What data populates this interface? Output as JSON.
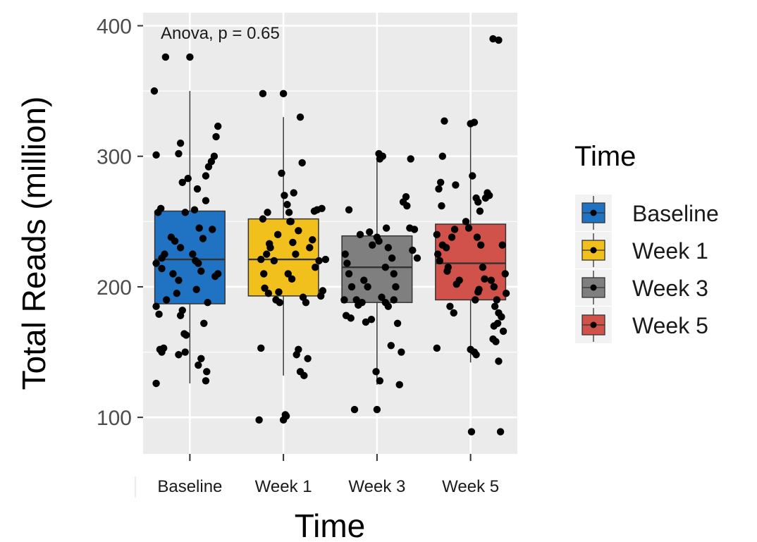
{
  "chart_data": {
    "type": "box",
    "title": "",
    "xlabel": "Time",
    "ylabel": "Total Reads (million)",
    "ylim": [
      72,
      410
    ],
    "yticks": [
      100,
      200,
      300,
      400
    ],
    "categories": [
      "Baseline",
      "Week 1",
      "Week 3",
      "Week 5"
    ],
    "annotation": "Anova, p = 0.65",
    "legend": {
      "title": "Time",
      "position": "right"
    },
    "grid": true,
    "colors": {
      "Baseline": "#1f73c2",
      "Week 1": "#f2c01c",
      "Week 3": "#7f7f7f",
      "Week 5": "#d0524a",
      "panel": "#ebebeb",
      "grid": "#ffffff",
      "point": "#000000"
    },
    "series": [
      {
        "name": "Baseline",
        "box": {
          "whisker_low": 126,
          "q1": 187,
          "median": 221,
          "q3": 258,
          "whisker_high": 350
        },
        "points": [
          [
            -0.36,
            126
          ],
          [
            -0.32,
            152
          ],
          [
            -0.3,
            150
          ],
          [
            -0.28,
            153
          ],
          [
            -0.25,
            190
          ],
          [
            -0.33,
            179
          ],
          [
            -0.36,
            185
          ],
          [
            -0.3,
            214
          ],
          [
            -0.36,
            218
          ],
          [
            -0.3,
            222
          ],
          [
            -0.27,
            225
          ],
          [
            -0.34,
            257
          ],
          [
            -0.31,
            260
          ],
          [
            -0.36,
            301
          ],
          [
            -0.38,
            350
          ],
          [
            -0.26,
            376
          ],
          [
            -0.2,
            238
          ],
          [
            -0.18,
            210
          ],
          [
            -0.12,
            205
          ],
          [
            -0.16,
            235
          ],
          [
            -0.1,
            230
          ],
          [
            -0.05,
            257
          ],
          [
            -0.08,
            280
          ],
          [
            -0.02,
            283
          ],
          [
            0.0,
            376
          ],
          [
            -0.1,
            310
          ],
          [
            -0.12,
            302
          ],
          [
            -0.14,
            195
          ],
          [
            -0.08,
            182
          ],
          [
            -0.1,
            178
          ],
          [
            -0.06,
            164
          ],
          [
            -0.04,
            163
          ],
          [
            -0.05,
            150
          ],
          [
            -0.12,
            148
          ],
          [
            0.03,
            225
          ],
          [
            0.06,
            220
          ],
          [
            0.09,
            218
          ],
          [
            0.12,
            212
          ],
          [
            0.05,
            259
          ],
          [
            0.1,
            245
          ],
          [
            0.14,
            237
          ],
          [
            0.17,
            285
          ],
          [
            0.2,
            292
          ],
          [
            0.23,
            296
          ],
          [
            0.17,
            266
          ],
          [
            0.08,
            275
          ],
          [
            0.26,
            300
          ],
          [
            0.3,
            323
          ],
          [
            0.28,
            315
          ],
          [
            0.24,
            244
          ],
          [
            0.19,
            188
          ],
          [
            0.15,
            172
          ],
          [
            0.12,
            145
          ],
          [
            0.09,
            140
          ],
          [
            0.18,
            135
          ],
          [
            0.17,
            128
          ],
          [
            0.27,
            208
          ],
          [
            0.3,
            210
          ],
          [
            0.07,
            198
          ]
        ]
      },
      {
        "name": "Week 1",
        "box": {
          "whisker_low": 132,
          "q1": 193,
          "median": 221,
          "q3": 252,
          "whisker_high": 330
        },
        "points": [
          [
            -0.24,
            221
          ],
          [
            -0.21,
            210
          ],
          [
            -0.18,
            225
          ],
          [
            -0.15,
            233
          ],
          [
            -0.22,
            252
          ],
          [
            -0.17,
            257
          ],
          [
            -0.14,
            230
          ],
          [
            -0.1,
            220
          ],
          [
            -0.06,
            240
          ],
          [
            -0.2,
            199
          ],
          [
            -0.16,
            195
          ],
          [
            -0.22,
            348
          ],
          [
            -0.26,
            98
          ],
          [
            -0.02,
            287
          ],
          [
            0.01,
            270
          ],
          [
            -0.05,
            196
          ],
          [
            -0.08,
            190
          ],
          [
            -0.04,
            188
          ],
          [
            -0.24,
            153
          ],
          [
            0.0,
            348
          ],
          [
            0.04,
            263
          ],
          [
            0.06,
            257
          ],
          [
            0.08,
            250
          ],
          [
            0.1,
            234
          ],
          [
            0.13,
            225
          ],
          [
            0.16,
            243
          ],
          [
            0.2,
            295
          ],
          [
            0.18,
            330
          ],
          [
            0.03,
            101
          ],
          [
            0.0,
            98
          ],
          [
            0.02,
            102
          ],
          [
            0.16,
            152
          ],
          [
            0.14,
            148
          ],
          [
            0.18,
            135
          ],
          [
            0.22,
            132
          ],
          [
            0.26,
            145
          ],
          [
            0.24,
            188
          ],
          [
            0.21,
            192
          ],
          [
            0.28,
            230
          ],
          [
            0.31,
            236
          ],
          [
            0.34,
            215
          ],
          [
            0.38,
            220
          ],
          [
            0.36,
            259
          ],
          [
            0.41,
            260
          ],
          [
            0.33,
            258
          ],
          [
            0.45,
            221
          ],
          [
            0.42,
            197
          ],
          [
            0.4,
            193
          ],
          [
            0.11,
            272
          ],
          [
            0.07,
            250
          ],
          [
            0.09,
            206
          ],
          [
            0.05,
            210
          ]
        ]
      },
      {
        "name": "Week 3",
        "box": {
          "whisker_low": 125,
          "q1": 188,
          "median": 215,
          "q3": 239,
          "whisker_high": 298
        },
        "points": [
          [
            -0.34,
            225
          ],
          [
            -0.32,
            218
          ],
          [
            -0.3,
            210
          ],
          [
            -0.27,
            200
          ],
          [
            -0.35,
            190
          ],
          [
            -0.33,
            178
          ],
          [
            -0.28,
            176
          ],
          [
            -0.3,
            259
          ],
          [
            -0.22,
            190
          ],
          [
            -0.2,
            186
          ],
          [
            -0.18,
            240
          ],
          [
            -0.14,
            205
          ],
          [
            -0.1,
            200
          ],
          [
            -0.06,
            175
          ],
          [
            -0.12,
            173
          ],
          [
            -0.16,
            188
          ],
          [
            -0.24,
            106
          ],
          [
            -0.05,
            232
          ],
          [
            0.0,
            106
          ],
          [
            0.02,
            302
          ],
          [
            0.06,
            300
          ],
          [
            0.03,
            298
          ],
          [
            -0.01,
            135
          ],
          [
            0.03,
            128
          ],
          [
            0.05,
            192
          ],
          [
            0.09,
            188
          ],
          [
            0.12,
            185
          ],
          [
            0.09,
            215
          ],
          [
            0.12,
            230
          ],
          [
            0.16,
            222
          ],
          [
            0.18,
            210
          ],
          [
            0.2,
            200
          ],
          [
            0.22,
            172
          ],
          [
            0.18,
            190
          ],
          [
            0.15,
            155
          ],
          [
            0.26,
            150
          ],
          [
            0.24,
            125
          ],
          [
            0.28,
            265
          ],
          [
            0.31,
            269
          ],
          [
            0.32,
            262
          ],
          [
            0.35,
            245
          ],
          [
            0.38,
            228
          ],
          [
            0.36,
            298
          ],
          [
            0.4,
            244
          ],
          [
            0.43,
            222
          ],
          [
            0.02,
            235
          ],
          [
            0.0,
            238
          ],
          [
            -0.08,
            242
          ],
          [
            0.1,
            245
          ]
        ]
      },
      {
        "name": "Week 5",
        "box": {
          "whisker_low": 142,
          "q1": 190,
          "median": 218,
          "q3": 248,
          "whisker_high": 327
        },
        "points": [
          [
            -0.35,
            225
          ],
          [
            -0.33,
            220
          ],
          [
            -0.3,
            232
          ],
          [
            -0.36,
            240
          ],
          [
            -0.31,
            262
          ],
          [
            -0.34,
            275
          ],
          [
            -0.32,
            280
          ],
          [
            -0.3,
            300
          ],
          [
            -0.28,
            327
          ],
          [
            -0.36,
            153
          ],
          [
            -0.25,
            212
          ],
          [
            -0.26,
            230
          ],
          [
            -0.24,
            215
          ],
          [
            -0.2,
            238
          ],
          [
            -0.17,
            244
          ],
          [
            -0.15,
            202
          ],
          [
            -0.12,
            205
          ],
          [
            -0.22,
            185
          ],
          [
            -0.18,
            180
          ],
          [
            -0.16,
            278
          ],
          [
            -0.05,
            250
          ],
          [
            -0.02,
            245
          ],
          [
            0.0,
            325
          ],
          [
            0.04,
            326
          ],
          [
            0.02,
            285
          ],
          [
            0.06,
            268
          ],
          [
            0.08,
            265
          ],
          [
            0.1,
            258
          ],
          [
            0.07,
            238
          ],
          [
            0.11,
            232
          ],
          [
            0.13,
            215
          ],
          [
            0.15,
            206
          ],
          [
            0.09,
            198
          ],
          [
            0.05,
            190
          ],
          [
            0.0,
            152
          ],
          [
            0.04,
            150
          ],
          [
            0.06,
            148
          ],
          [
            0.01,
            89
          ],
          [
            0.08,
            196
          ],
          [
            0.16,
            268
          ],
          [
            0.18,
            272
          ],
          [
            0.2,
            270
          ],
          [
            0.22,
            205
          ],
          [
            0.25,
            200
          ],
          [
            0.28,
            190
          ],
          [
            0.26,
            185
          ],
          [
            0.3,
            180
          ],
          [
            0.29,
            172
          ],
          [
            0.25,
            170
          ],
          [
            0.24,
            160
          ],
          [
            0.27,
            158
          ],
          [
            0.3,
            143
          ],
          [
            0.33,
            177
          ],
          [
            0.35,
            166
          ],
          [
            0.32,
            89
          ],
          [
            0.24,
            390
          ],
          [
            0.3,
            389
          ],
          [
            0.34,
            232
          ],
          [
            0.37,
            210
          ],
          [
            0.38,
            195
          ]
        ]
      }
    ]
  }
}
